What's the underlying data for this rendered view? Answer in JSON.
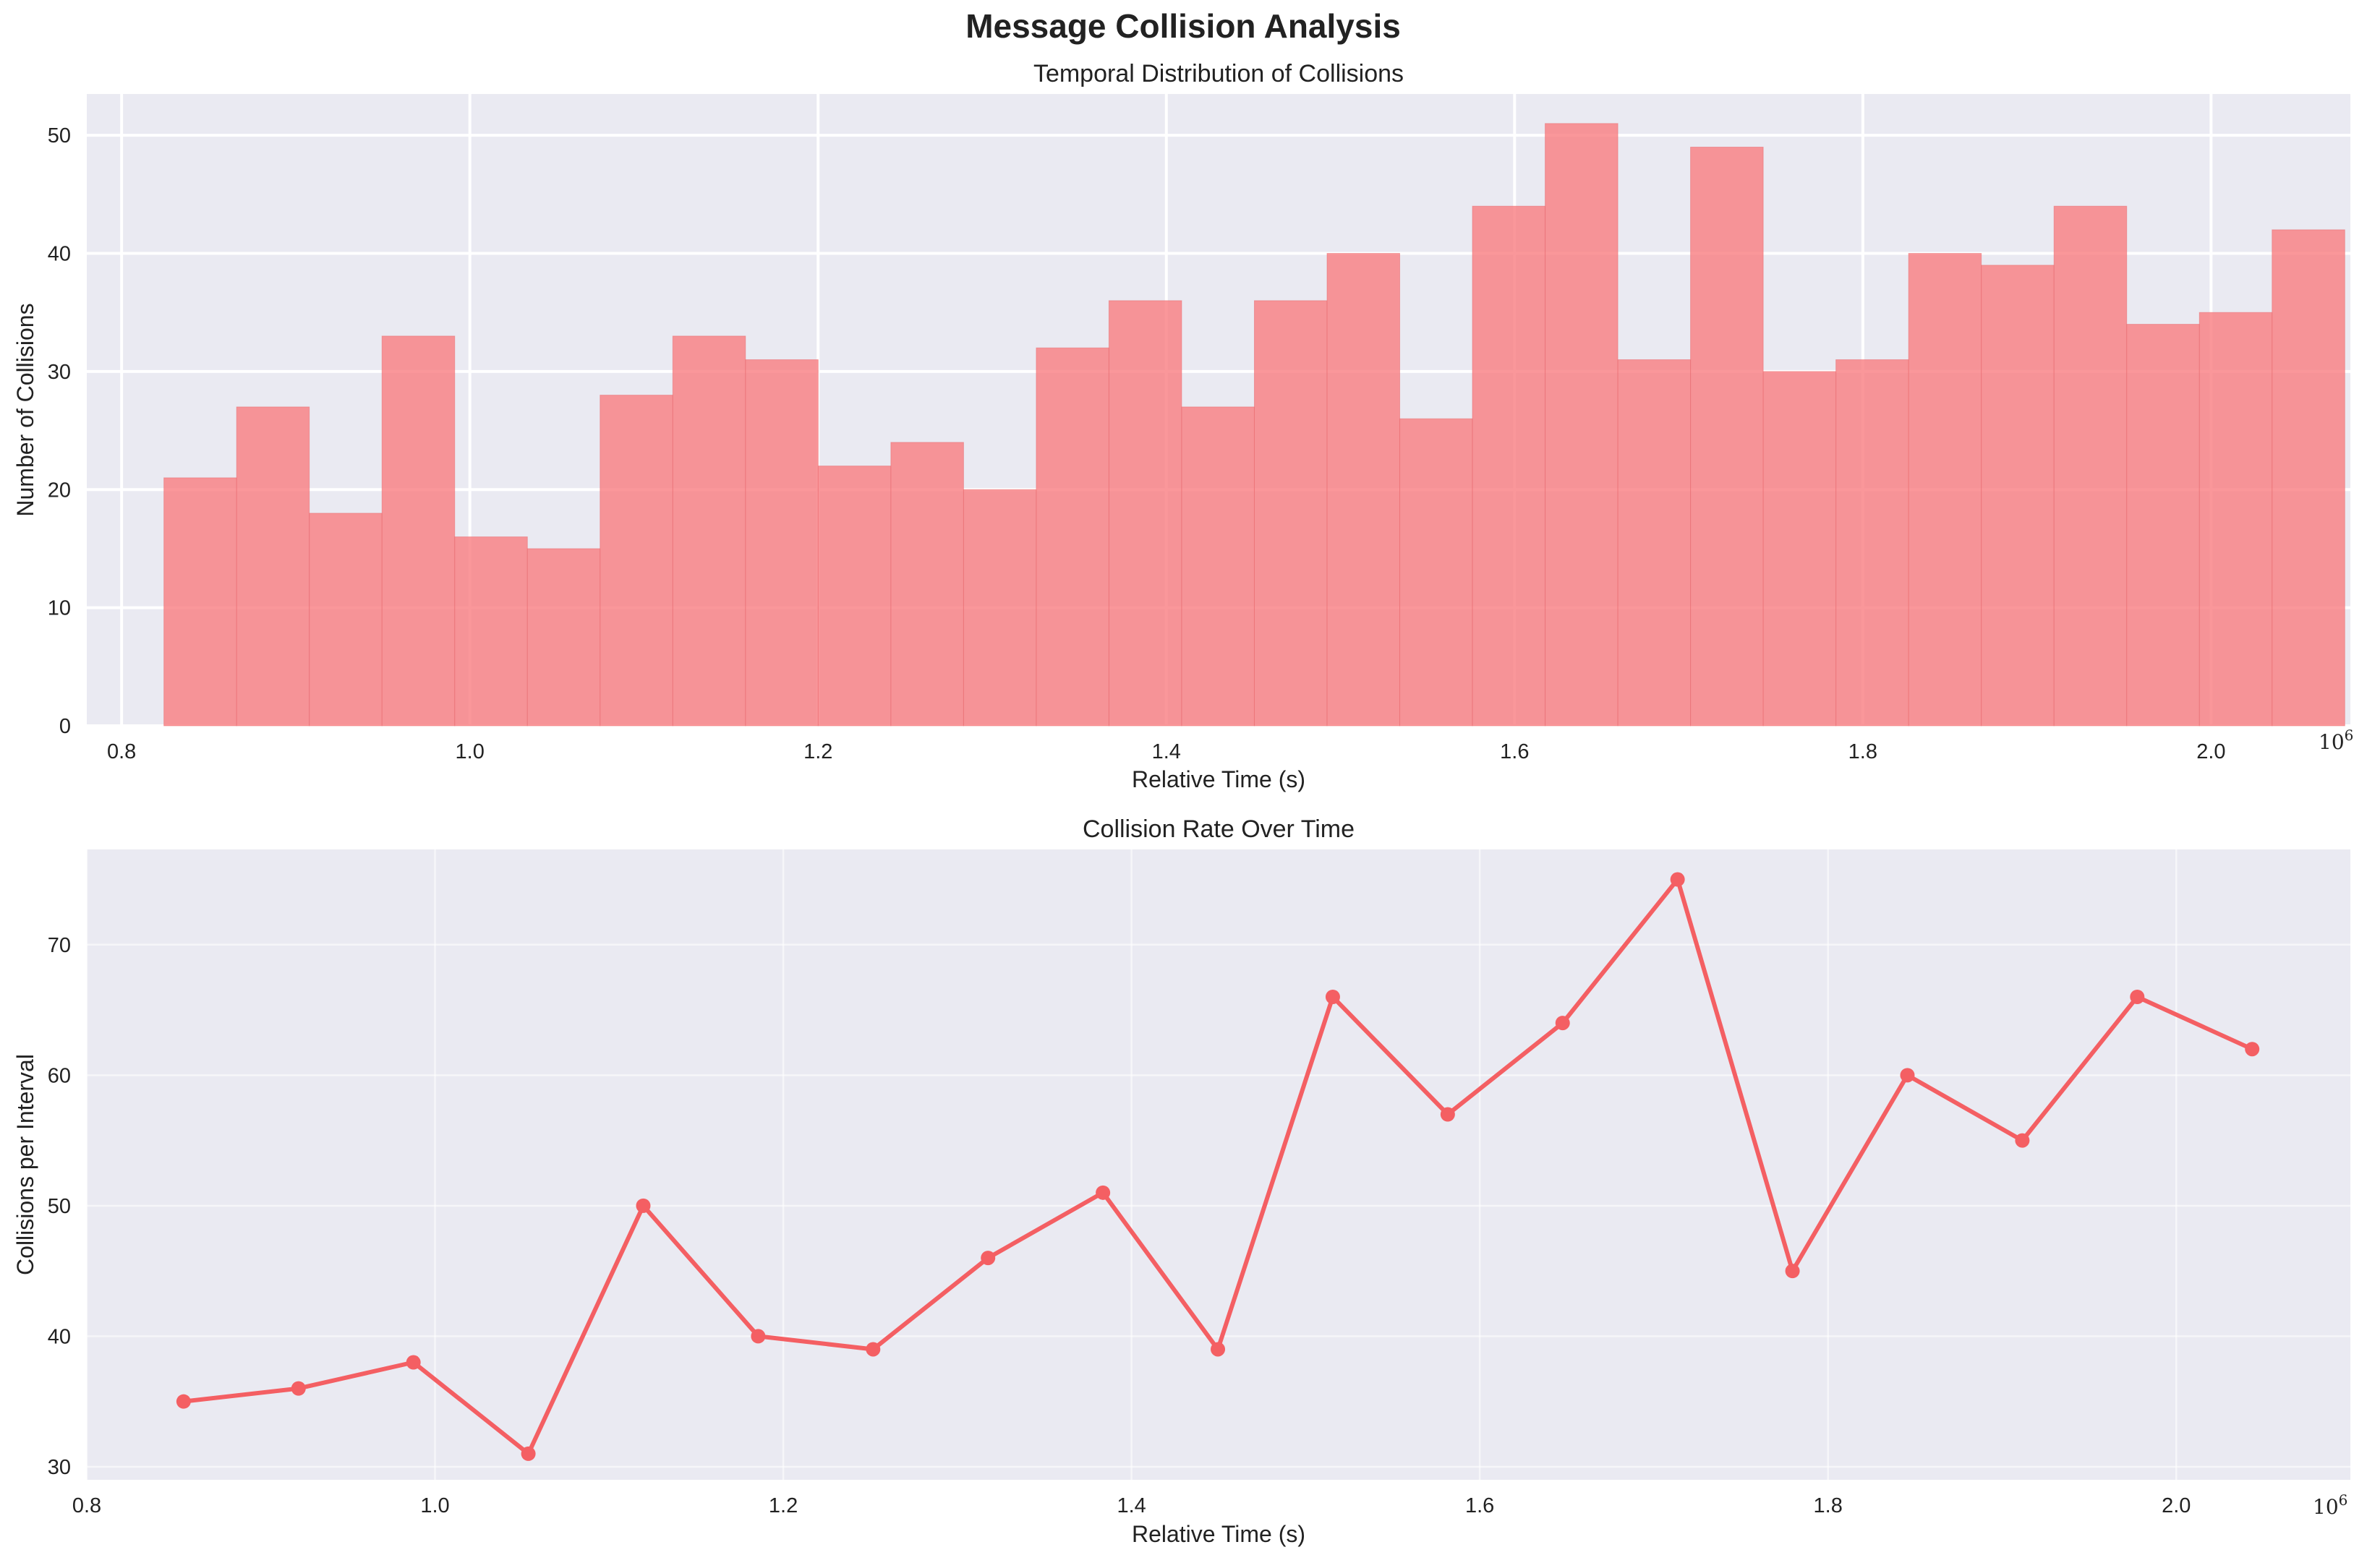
{
  "figure": {
    "title": "Message Collision Analysis",
    "x_offset_base": "10",
    "x_offset_exp": "6"
  },
  "colors": {
    "background": "#eaeaf2",
    "bar": "#f87a7d",
    "line": "#f45f63",
    "grid": "#ffffff"
  },
  "chart_data": [
    {
      "type": "bar",
      "title": "Temporal Distribution of Collisions",
      "xlabel": "Relative Time (s)",
      "ylabel": "Number of Collisions",
      "x_scale_note": "1e6",
      "xlim": [
        0.78,
        2.08
      ],
      "ylim": [
        0,
        53.5
      ],
      "grid": true,
      "xticks": [
        0.8,
        1.0,
        1.2,
        1.4,
        1.6,
        1.8,
        2.0
      ],
      "xtick_labels": [
        "0.8",
        "1.0",
        "1.2",
        "1.4",
        "1.6",
        "1.8",
        "2.0"
      ],
      "yticks": [
        0,
        10,
        20,
        30,
        40,
        50
      ],
      "ytick_labels": [
        "0",
        "10",
        "20",
        "30",
        "40",
        "50"
      ],
      "bin_start": 0.8243,
      "bin_width": 0.04175,
      "values": [
        21,
        27,
        18,
        33,
        16,
        15,
        28,
        33,
        31,
        22,
        24,
        20,
        32,
        36,
        27,
        36,
        40,
        26,
        44,
        51,
        31,
        49,
        30,
        31,
        40,
        39,
        44,
        34,
        35,
        42
      ]
    },
    {
      "type": "line",
      "title": "Collision Rate Over Time",
      "xlabel": "Relative Time (s)",
      "ylabel": "Collisions per Interval",
      "x_scale_note": "1e6",
      "xlim": [
        0.8,
        2.1
      ],
      "ylim": [
        29,
        77.3
      ],
      "grid": true,
      "xticks": [
        0.8,
        1.0,
        1.2,
        1.4,
        1.6,
        1.8,
        2.0
      ],
      "xtick_labels": [
        "0.8",
        "1.0",
        "1.2",
        "1.4",
        "1.6",
        "1.8",
        "2.0"
      ],
      "yticks": [
        30,
        40,
        50,
        60,
        70
      ],
      "ytick_labels": [
        "30",
        "40",
        "50",
        "60",
        "70"
      ],
      "x": [
        0.8556,
        0.9216,
        0.9876,
        1.0536,
        1.1196,
        1.1856,
        1.2516,
        1.3176,
        1.3836,
        1.4496,
        1.5156,
        1.5816,
        1.6476,
        1.7136,
        1.7796,
        1.8456,
        1.9116,
        1.9776,
        2.0436
      ],
      "y": [
        35,
        36,
        38,
        31,
        50,
        40,
        39,
        46,
        51,
        39,
        66,
        57,
        64,
        75,
        45,
        60,
        55,
        66,
        62
      ]
    }
  ]
}
